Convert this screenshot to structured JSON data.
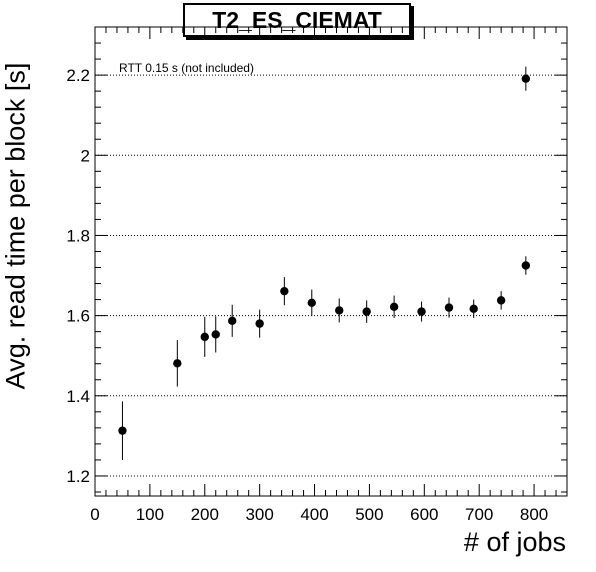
{
  "chart_data": {
    "type": "scatter",
    "title": "T2_ES_CIEMAT",
    "xlabel": "# of jobs",
    "ylabel": "Avg. read time per block [s]",
    "annotation": "RTT 0.15 s (not included)",
    "xlim": [
      0,
      860
    ],
    "ylim": [
      1.15,
      2.32
    ],
    "xticks": [
      0,
      100,
      200,
      300,
      400,
      500,
      600,
      700,
      800
    ],
    "yticks": [
      1.2,
      1.4,
      1.6,
      1.8,
      2.0,
      2.2
    ],
    "ytick_labels": [
      "1.2",
      "1.4",
      "1.6",
      "1.8",
      "2",
      "2.2"
    ],
    "grid": "horizontal-dotted",
    "series": [
      {
        "points": [
          {
            "x": 50,
            "y": 1.313,
            "err": 0.073
          },
          {
            "x": 150,
            "y": 1.481,
            "err": 0.058
          },
          {
            "x": 200,
            "y": 1.547,
            "err": 0.05
          },
          {
            "x": 220,
            "y": 1.553,
            "err": 0.045
          },
          {
            "x": 250,
            "y": 1.587,
            "err": 0.04
          },
          {
            "x": 300,
            "y": 1.58,
            "err": 0.035
          },
          {
            "x": 345,
            "y": 1.661,
            "err": 0.035
          },
          {
            "x": 395,
            "y": 1.632,
            "err": 0.033
          },
          {
            "x": 445,
            "y": 1.613,
            "err": 0.03
          },
          {
            "x": 495,
            "y": 1.61,
            "err": 0.028
          },
          {
            "x": 545,
            "y": 1.622,
            "err": 0.028
          },
          {
            "x": 595,
            "y": 1.61,
            "err": 0.025
          },
          {
            "x": 645,
            "y": 1.62,
            "err": 0.025
          },
          {
            "x": 690,
            "y": 1.617,
            "err": 0.023
          },
          {
            "x": 740,
            "y": 1.638,
            "err": 0.023
          },
          {
            "x": 785,
            "y": 1.725,
            "err": 0.023
          },
          {
            "x": 785,
            "y": 2.191,
            "err": 0.03
          }
        ]
      }
    ]
  }
}
